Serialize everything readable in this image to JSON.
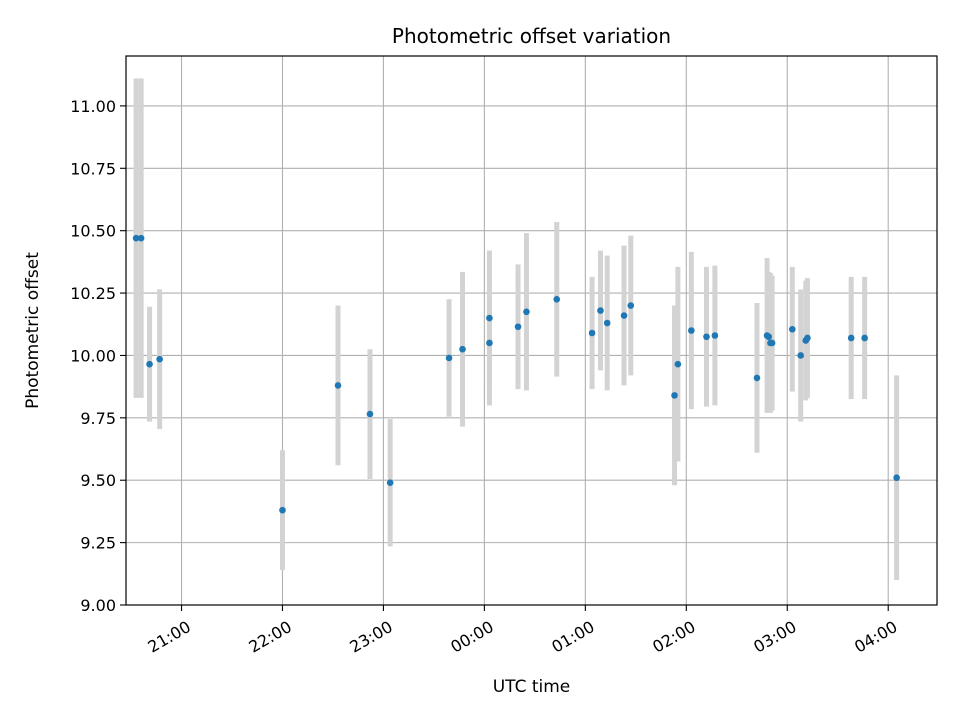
{
  "chart_data": {
    "type": "scatter",
    "title": "Photometric offset variation",
    "xlabel": "UTC time",
    "ylabel": "Photometric offset",
    "grid": true,
    "xlim": [
      "20:27",
      "04:29"
    ],
    "ylim": [
      9.0,
      11.2
    ],
    "x_ticks": [
      "21:00",
      "22:00",
      "23:00",
      "00:00",
      "01:00",
      "02:00",
      "03:00",
      "04:00"
    ],
    "y_ticks": [
      "9.00",
      "9.25",
      "9.50",
      "9.75",
      "10.00",
      "10.25",
      "10.50",
      "10.75",
      "11.00"
    ],
    "colors": {
      "marker": "#1f77b4",
      "errorbar": "#d3d3d3",
      "grid": "#b0b0b0"
    },
    "points": [
      {
        "x": "20:33",
        "y": 10.47,
        "err": 0.64
      },
      {
        "x": "20:36",
        "y": 10.47,
        "err": 0.64
      },
      {
        "x": "20:41",
        "y": 9.965,
        "err": 0.23
      },
      {
        "x": "20:47",
        "y": 9.985,
        "err": 0.28
      },
      {
        "x": "22:00",
        "y": 9.38,
        "err": 0.24
      },
      {
        "x": "22:33",
        "y": 9.88,
        "err": 0.32
      },
      {
        "x": "22:52",
        "y": 9.765,
        "err": 0.26
      },
      {
        "x": "23:04",
        "y": 9.49,
        "err": 0.255
      },
      {
        "x": "23:39",
        "y": 9.99,
        "err": 0.235
      },
      {
        "x": "23:47",
        "y": 10.025,
        "err": 0.31
      },
      {
        "x": "00:03",
        "y": 10.05,
        "err": 0.25
      },
      {
        "x": "00:03",
        "y": 10.15,
        "err": 0.27
      },
      {
        "x": "00:20",
        "y": 10.115,
        "err": 0.25
      },
      {
        "x": "00:25",
        "y": 10.175,
        "err": 0.315
      },
      {
        "x": "00:43",
        "y": 10.225,
        "err": 0.31
      },
      {
        "x": "01:04",
        "y": 10.09,
        "err": 0.225
      },
      {
        "x": "01:09",
        "y": 10.18,
        "err": 0.24
      },
      {
        "x": "01:13",
        "y": 10.13,
        "err": 0.27
      },
      {
        "x": "01:23",
        "y": 10.16,
        "err": 0.28
      },
      {
        "x": "01:27",
        "y": 10.2,
        "err": 0.28
      },
      {
        "x": "01:53",
        "y": 9.84,
        "err": 0.36
      },
      {
        "x": "01:55",
        "y": 9.965,
        "err": 0.39
      },
      {
        "x": "02:03",
        "y": 10.1,
        "err": 0.315
      },
      {
        "x": "02:12",
        "y": 10.075,
        "err": 0.28
      },
      {
        "x": "02:17",
        "y": 10.08,
        "err": 0.28
      },
      {
        "x": "02:42",
        "y": 9.91,
        "err": 0.3
      },
      {
        "x": "02:48",
        "y": 10.08,
        "err": 0.31
      },
      {
        "x": "02:49",
        "y": 10.075,
        "err": 0.26
      },
      {
        "x": "02:50",
        "y": 10.05,
        "err": 0.28
      },
      {
        "x": "02:51",
        "y": 10.05,
        "err": 0.27
      },
      {
        "x": "03:03",
        "y": 10.105,
        "err": 0.25
      },
      {
        "x": "03:08",
        "y": 10.0,
        "err": 0.265
      },
      {
        "x": "03:11",
        "y": 10.06,
        "err": 0.24
      },
      {
        "x": "03:12",
        "y": 10.07,
        "err": 0.24
      },
      {
        "x": "03:38",
        "y": 10.07,
        "err": 0.245
      },
      {
        "x": "03:46",
        "y": 10.07,
        "err": 0.245
      },
      {
        "x": "04:05",
        "y": 9.51,
        "err": 0.41
      }
    ]
  }
}
